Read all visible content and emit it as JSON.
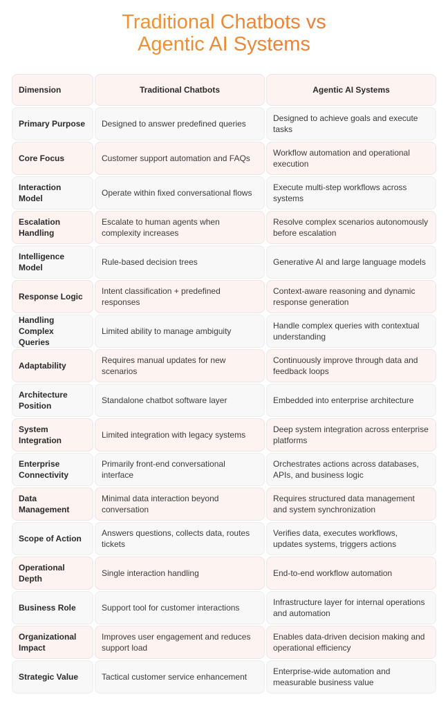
{
  "title": {
    "line1": "Traditional Chatbots vs",
    "line2": "Agentic AI Systems"
  },
  "colors": {
    "title_start": "#f2a12c",
    "title_end": "#e8713c",
    "row_pink": "#fdf3f1",
    "row_grey": "#f8f8f9"
  },
  "table": {
    "headers": [
      "Dimension",
      "Traditional Chatbots",
      "Agentic AI Systems"
    ],
    "rows": [
      [
        "Primary Purpose",
        "Designed to answer predefined queries",
        "Designed to achieve goals and execute tasks"
      ],
      [
        "Core Focus",
        "Customer support automation and FAQs",
        "Workflow automation and operational execution"
      ],
      [
        "Interaction Model",
        "Operate within fixed conversational flows",
        "Execute multi-step workflows across systems"
      ],
      [
        "Escalation Handling",
        "Escalate to human agents when complexity increases",
        "Resolve complex scenarios autonomously before escalation"
      ],
      [
        "Intelligence Model",
        "Rule-based decision trees",
        "Generative AI and large language models"
      ],
      [
        "Response Logic",
        "Intent classification + predefined responses",
        "Context-aware reasoning and dynamic response generation"
      ],
      [
        "Handling Complex Queries",
        "Limited ability to manage ambiguity",
        "Handle complex queries with contextual understanding"
      ],
      [
        "Adaptability",
        "Requires manual updates for new scenarios",
        "Continuously improve through data and feedback loops"
      ],
      [
        "Architecture Position",
        "Standalone chatbot software layer",
        "Embedded into enterprise architecture"
      ],
      [
        "System Integration",
        "Limited integration with legacy systems",
        "Deep system integration across enterprise platforms"
      ],
      [
        "Enterprise Connectivity",
        "Primarily front-end conversational interface",
        "Orchestrates actions across databases, APIs, and business logic"
      ],
      [
        "Data Management",
        "Minimal data interaction beyond conversation",
        "Requires structured data management and system synchronization"
      ],
      [
        "Scope of Action",
        "Answers questions, collects data, routes tickets",
        "Verifies data, executes workflows, updates systems, triggers actions"
      ],
      [
        "Operational Depth",
        "Single interaction handling",
        "End-to-end workflow automation"
      ],
      [
        "Business Role",
        "Support tool for customer interactions",
        "Infrastructure layer for internal operations and automation"
      ],
      [
        "Organizational Impact",
        "Improves user engagement and reduces support load",
        "Enables data-driven decision making and operational efficiency"
      ],
      [
        "Strategic Value",
        "Tactical customer service enhancement",
        "Enterprise-wide automation and measurable business value"
      ]
    ]
  }
}
